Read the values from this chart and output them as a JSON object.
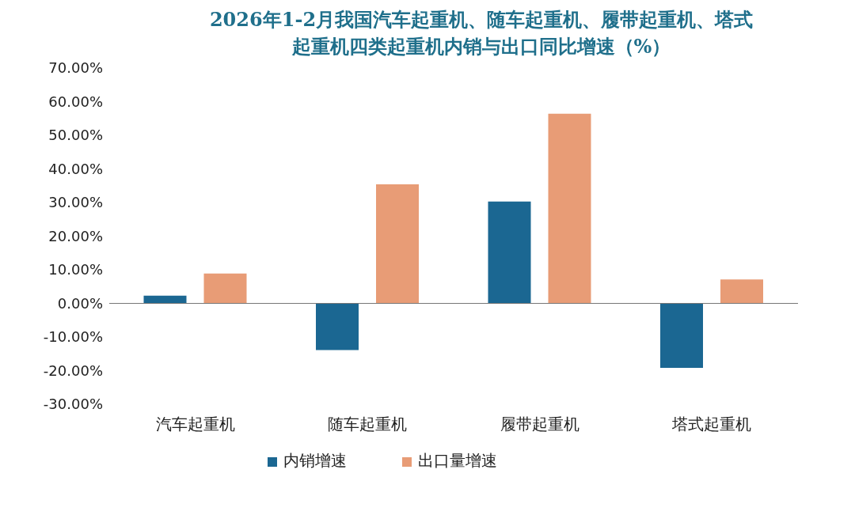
{
  "chart_data": {
    "type": "bar",
    "title": "2026年1-2月我国汽车起重机、随车起重机、履带起重机、塔式起重机四类起重机内销与出口同比增速（%）",
    "categories": [
      "汽车起重机",
      "随车起重机",
      "履带起重机",
      "塔式起重机"
    ],
    "series": [
      {
        "name": "内销增速",
        "color": "#1b6792",
        "values": [
          2.3,
          -13.9,
          30.3,
          -19.2
        ]
      },
      {
        "name": "出口量增速",
        "color": "#e89c76",
        "values": [
          8.9,
          35.4,
          56.4,
          7.1
        ]
      }
    ],
    "ylim": [
      -30,
      70
    ],
    "yticks": [
      {
        "value": -30,
        "label": "-30.00%"
      },
      {
        "value": -20,
        "label": "-20.00%"
      },
      {
        "value": -10,
        "label": "-10.00%"
      },
      {
        "value": 0,
        "label": "0.00%"
      },
      {
        "value": 10,
        "label": "10.00%"
      },
      {
        "value": 20,
        "label": "20.00%"
      },
      {
        "value": 30,
        "label": "30.00%"
      },
      {
        "value": 40,
        "label": "40.00%"
      },
      {
        "value": 50,
        "label": "50.00%"
      },
      {
        "value": 60,
        "label": "60.00%"
      },
      {
        "value": 70,
        "label": "70.00%"
      }
    ],
    "ref_lines": [
      {
        "axis": "y",
        "value": 0,
        "color": "#777777"
      }
    ],
    "grid": false,
    "legend": "bottom"
  }
}
